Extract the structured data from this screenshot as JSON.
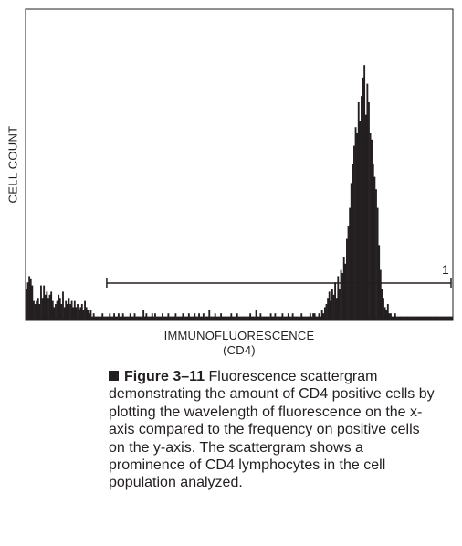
{
  "chart_data": {
    "type": "bar",
    "title": "",
    "xlabel": "IMMUNOFLUORESCENCE",
    "xlabel_sub": "(CD4)",
    "ylabel": "CELL COUNT",
    "grid": false,
    "xlim": [
      0,
      100
    ],
    "ylim": [
      0,
      100
    ],
    "gate": {
      "label": "1",
      "from": 19,
      "to": 100
    },
    "note": "relative units; axes have no tick labels",
    "bin_values": [
      10,
      12,
      14,
      13,
      11,
      6,
      5,
      6,
      7,
      5,
      11,
      7,
      11,
      8,
      9,
      7,
      8,
      9,
      6,
      4,
      5,
      6,
      8,
      7,
      5,
      9,
      4,
      6,
      5,
      7,
      5,
      6,
      4,
      6,
      4,
      5,
      3,
      4,
      5,
      3,
      6,
      4,
      3,
      2,
      3,
      1,
      2,
      1,
      1,
      1,
      1,
      1,
      2,
      1,
      1,
      1,
      1,
      2,
      1,
      1,
      2,
      1,
      1,
      2,
      1,
      1,
      2,
      1,
      1,
      1,
      1,
      2,
      1,
      1,
      2,
      1,
      1,
      1,
      1,
      1,
      3,
      1,
      2,
      1,
      1,
      1,
      2,
      1,
      2,
      1,
      1,
      1,
      1,
      2,
      1,
      1,
      1,
      2,
      1,
      1,
      1,
      1,
      2,
      1,
      1,
      1,
      1,
      2,
      1,
      1,
      1,
      2,
      1,
      1,
      1,
      2,
      1,
      1,
      2,
      1,
      1,
      2,
      1,
      1,
      1,
      3,
      1,
      1,
      1,
      2,
      1,
      1,
      1,
      2,
      1,
      1,
      1,
      1,
      1,
      1,
      2,
      1,
      1,
      1,
      2,
      1,
      1,
      1,
      1,
      1,
      1,
      1,
      1,
      2,
      1,
      1,
      1,
      3,
      1,
      1,
      2,
      1,
      1,
      1,
      1,
      1,
      1,
      2,
      1,
      1,
      2,
      1,
      1,
      1,
      1,
      2,
      1,
      1,
      1,
      2,
      1,
      1,
      2,
      1,
      1,
      1,
      1,
      1,
      2,
      1,
      1,
      1,
      1,
      1,
      2,
      1,
      2,
      2,
      1,
      1,
      2,
      1,
      3,
      2,
      4,
      5,
      7,
      9,
      6,
      10,
      8,
      12,
      7,
      14,
      10,
      16,
      15,
      20,
      18,
      26,
      30,
      36,
      44,
      50,
      56,
      62,
      60,
      70,
      64,
      72,
      78,
      82,
      66,
      76,
      70,
      60,
      58,
      50,
      46,
      42,
      36,
      24,
      16,
      10,
      7,
      4,
      3,
      5,
      2,
      2,
      1,
      1,
      2,
      1,
      1,
      1,
      1,
      1,
      1,
      1,
      1,
      1,
      1,
      1,
      1,
      1,
      1,
      1,
      1,
      1,
      1,
      1,
      1,
      1,
      1,
      1,
      1,
      1,
      1,
      1,
      1,
      1,
      1,
      1,
      1,
      1,
      1,
      1,
      1,
      1,
      1,
      1
    ]
  },
  "caption": {
    "figure_number": "Figure 3–11",
    "text": "Fluorescence scattergram demonstrating the amount of CD4 positive cells by plotting the wavelength of fluorescence on the x-axis compared to the frequency on positive cells on the y-axis. The scattergram shows a prominence of CD4 lymphocytes in the cell population analyzed."
  }
}
